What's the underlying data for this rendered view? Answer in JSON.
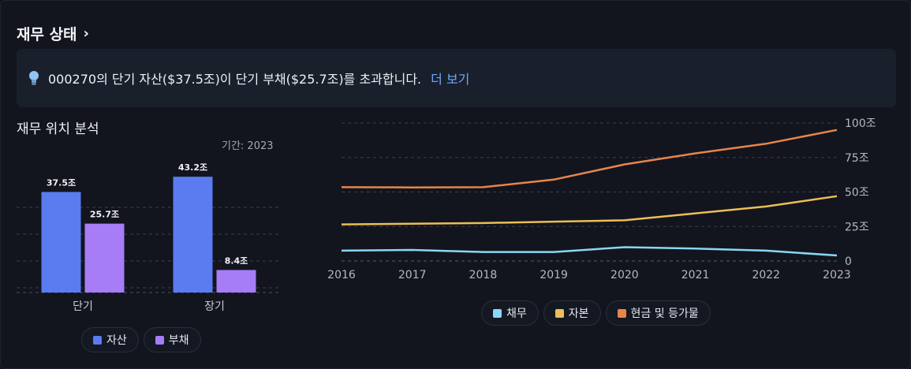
{
  "header": {
    "title": "재무 상태",
    "chevron_icon": "chevron-right-icon"
  },
  "banner": {
    "icon": "lightbulb-icon",
    "text": "000270의 단기 자산($37.5조)이 단기 부채($25.7조)를 초과합니다.",
    "link_label": "더 보기"
  },
  "left_panel": {
    "title": "재무 위치 분석",
    "period_label": "기간: 2023"
  },
  "colors": {
    "assets": "#5b7cf0",
    "liabilities": "#a67cf7",
    "debt": "#8ad6f5",
    "equity": "#ecbe55",
    "cash": "#e8854a"
  },
  "chart_data": [
    {
      "type": "bar",
      "title": "",
      "categories": [
        "단기",
        "장기"
      ],
      "series": [
        {
          "name": "자산",
          "values": [
            37.5,
            43.2
          ],
          "labels": [
            "37.5조",
            "43.2조"
          ]
        },
        {
          "name": "부채",
          "values": [
            25.7,
            8.4
          ],
          "labels": [
            "25.7조",
            "8.4조"
          ]
        }
      ],
      "ylim": [
        0,
        50
      ],
      "grid": true,
      "legend": "bottom-center"
    },
    {
      "type": "line",
      "title": "",
      "x": [
        "2016",
        "2017",
        "2018",
        "2019",
        "2020",
        "2021",
        "2022",
        "2023"
      ],
      "series": [
        {
          "name": "채무",
          "values": [
            7.5,
            8.0,
            6.5,
            6.5,
            10.0,
            9.0,
            7.5,
            4.0
          ]
        },
        {
          "name": "자본",
          "values": [
            26.5,
            27.0,
            27.5,
            28.5,
            29.5,
            34.5,
            39.5,
            47.0
          ]
        },
        {
          "name": "현금 및 등가물",
          "values": [
            53.5,
            53.3,
            53.5,
            59.0,
            70.0,
            78.0,
            85.0,
            95.0
          ]
        }
      ],
      "yticks": [
        "0",
        "25조",
        "50조",
        "75조",
        "100조"
      ],
      "ylim": [
        0,
        100
      ],
      "grid": true,
      "legend": "bottom-center"
    }
  ]
}
